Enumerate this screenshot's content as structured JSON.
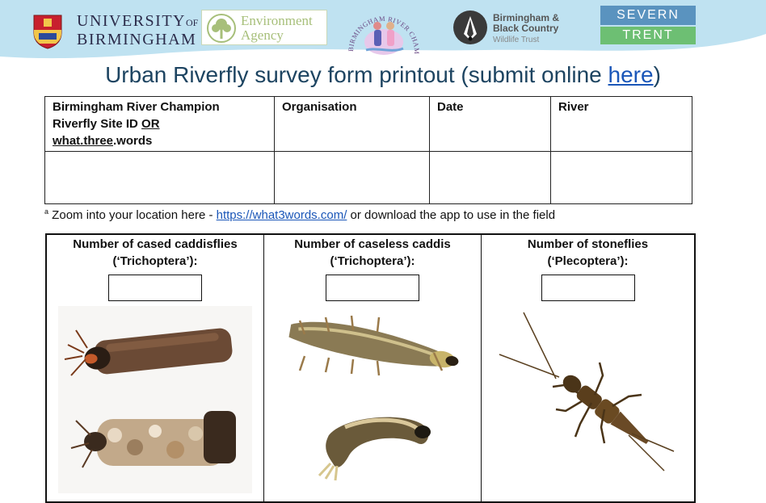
{
  "header": {
    "logos": {
      "uob_line1": "UNIVERSITY",
      "uob_of": "OF",
      "uob_line2": "BIRMINGHAM",
      "ea_line1": "Environment",
      "ea_line2": "Agency",
      "brc_arc": "BIRMINGHAM RIVER CHAMPIONS",
      "bbc_line1": "Birmingham &",
      "bbc_line2": "Black Country",
      "bbc_line3": "Wildlife Trust",
      "st_top": "SEVERN",
      "st_bottom": "TRENT"
    },
    "colors": {
      "wave": "#bfe2f1",
      "title": "#1d4461",
      "link": "#1a56b8"
    }
  },
  "title": {
    "text": "Urban Riverfly survey form printout (submit online ",
    "link_text": "here",
    "close": ")"
  },
  "site_table": {
    "col1_line1": "Birmingham River Champion",
    "col1_line2_a": "Riverfly Site ID ",
    "col1_line2_b": "OR",
    "col1_line3_a": "what.three",
    "col1_line3_b": ".words",
    "col2": "Organisation",
    "col3": "Date",
    "col4": "River"
  },
  "footnote": {
    "marker": "a",
    "text_before": " Zoom into your location here - ",
    "link": "https://what3words.com/",
    "text_after": " or download the app to use in the field"
  },
  "count_table": {
    "cells": [
      {
        "line1": "Number of cased caddisflies",
        "line2": "(‘Trichoptera’):",
        "photo": "cased-caddisfly-larvae-photo"
      },
      {
        "line1": "Number of caseless caddis",
        "line2": "(‘Trichoptera’):",
        "photo": "caseless-caddis-larvae-photo"
      },
      {
        "line1": "Number of stoneflies",
        "line2": "(‘Plecoptera’):",
        "photo": "stonefly-nymph-photo"
      }
    ]
  }
}
